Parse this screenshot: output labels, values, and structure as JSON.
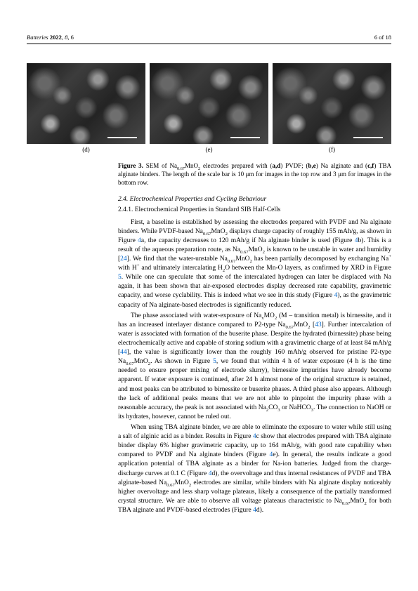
{
  "header": {
    "journal": "Batteries",
    "year": "2022",
    "vol": "8",
    "artnum": "6",
    "page": "6 of 18"
  },
  "imgrow": {
    "labels": [
      "(d)",
      "(e)",
      "(f)"
    ]
  },
  "figcaption": {
    "label": "Figure 3.",
    "text_a": "SEM of Na",
    "sub1": "0.67",
    "text_b": "MnO",
    "sub2": "2",
    "text_c": " electrodes prepared with (",
    "bold_ad": "a,d",
    "text_d": ") PVDF; (",
    "bold_be": "b,e",
    "text_e": ") Na alginate and (",
    "bold_cf": "c,f",
    "text_f": ") TBA alginate binders. The length of the scale bar is 10 μm for images in the top row and 3 μm for images in the bottom row."
  },
  "section": {
    "num": "2.4.",
    "title": "Electrochemical Properties and Cycling Behaviour"
  },
  "subsection": {
    "num": "2.4.1.",
    "title": "Electrochemical Properties in Standard SIB Half-Cells"
  },
  "p1": {
    "a": "First, a baseline is established by assessing the electrodes prepared with PVDF and Na alginate binders. While PVDF-based Na",
    "b": "MnO",
    "c": " displays charge capacity of roughly 155 mAh/g, as shown in Figure ",
    "fig4a": "4",
    "d": "a, the capacity decreases to 120 mAh/g if Na alginate binder is used (Figure ",
    "fig4b": "4",
    "e": "b). This is a result of the aqueous preparation route, as Na",
    "f": "MnO",
    "g": " is known to be unstable in water and humidity [",
    "cite24": "24",
    "h": "]. We find that the water-unstable Na",
    "i": "MnO",
    "j": " has been partially decomposed by exchanging Na",
    "k": " with H",
    "l": " and ultimately intercalating H",
    "m": "O between the Mn-O layers, as confirmed by XRD in Figure ",
    "fig5a": "5",
    "n": ". While one can speculate that some of the intercalated hydrogen can later be displaced with Na again, it has been shown that air-exposed electrodes display decreased rate capability, gravimetric capacity, and worse cyclability. This is indeed what we see in this study (Figure ",
    "fig4c": "4",
    "o": "), as the gravimetric capacity of Na alginate-based electrodes is significantly reduced."
  },
  "p2": {
    "a": "The phase associated with water-exposure of Na",
    "b": "MO",
    "c": " (M – transition metal) is bir­nessite, and it has an increased interlayer distance compared to P2-type Na",
    "d": "MnO",
    "e": " [",
    "cite43": "43",
    "f": "]. Further intercalation of water is associated with formation of the buserite phase. Despite the hydrated (birnessite) phase being electrochemically active and capable of storing sodium with a gravimetric charge of at least 84 mAh/g [",
    "cite44": "44",
    "g": "], the value is significantly lower than the roughly 160 mAh/g observed for pristine P2-type Na",
    "h": "MnO",
    "i": ". As shown in Figure ",
    "fig5b": "5",
    "j": ", we found that within 4 h of water exposure (4 h is the time needed to ensure proper mixing of electrode slurry), birnessite impurities have already become apparent. If water exposure is continued, after 24 h almost none of the original structure is retained, and most peaks can be attributed to birnessite or buserite phases. A third phase also appears. Although the lack of additional peaks means that we are not able to pinpoint the impurity phase with a reasonable accuracy, the peak is not associated with Na",
    "k": "CO",
    "l": " or NaHCO",
    "m": ". The connection to NaOH or its hydrates, however, cannot be ruled out."
  },
  "p3": {
    "a": "When using TBA alginate binder, we are able to eliminate the exposure to water while still using a salt of alginic acid as a binder. Results in Figure ",
    "fig4c2": "4",
    "b": "c show that electrodes prepared with TBA alginate binder display 6% higher gravimetric capacity, up to 164 mAh/g, with good rate capability when compared to PVDF and Na alginate binders (Figure ",
    "fig4e": "4",
    "c": "e). In general, the results indicate a good application potential of TBA alginate as a binder for Na-ion batteries. Judged from the charge-discharge curves at 0.1 C (Figure ",
    "fig4d": "4",
    "d": "d), the overvoltage and thus internal resistances of PVDF and TBA alginate-based Na",
    "e": "MnO",
    "f": " electrodes are similar, while binders with Na alginate display noticeably higher overvoltage and less sharp voltage plateaus, likely a consequence of the partially transformed crystal structure. We are able to observe all voltage plateaus characteristic to Na",
    "g": "MnO",
    "h": " for both TBA alginate and PVDF-based electrodes (Figure ",
    "fig4d2": "4",
    "i": "d)."
  }
}
